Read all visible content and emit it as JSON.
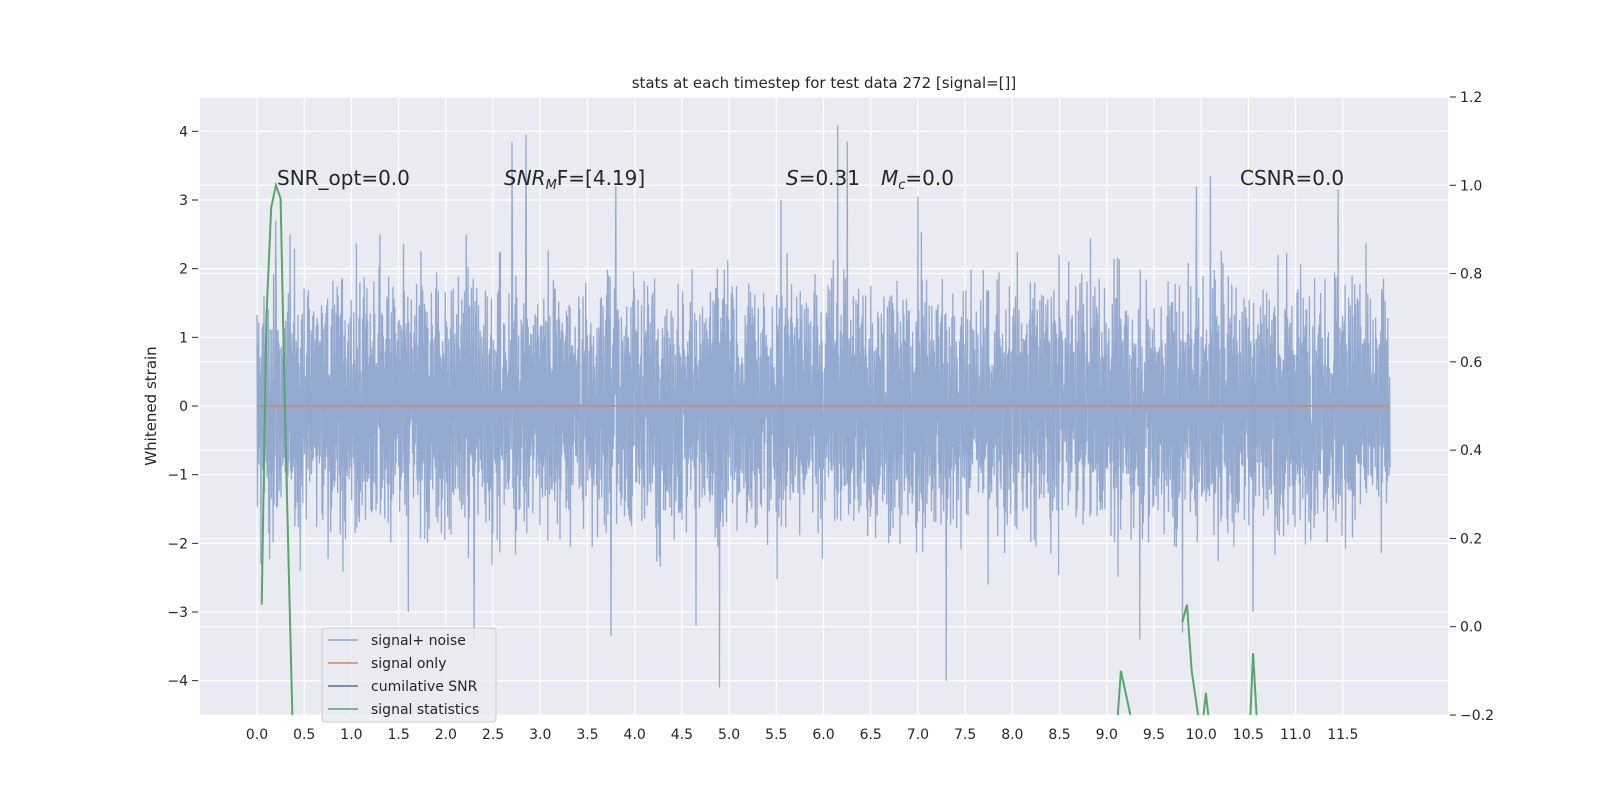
{
  "chart_data": {
    "type": "line",
    "title": "stats at each timestep for test data 272 [signal=[]]",
    "ylabel": "Whitened strain",
    "xlabel": "",
    "grid": true,
    "legend_position": "lower-left",
    "x_range": [
      0.0,
      12.0
    ],
    "x_ticks": [
      "0.0",
      "0.5",
      "1.0",
      "1.5",
      "2.0",
      "2.5",
      "3.0",
      "3.5",
      "4.0",
      "4.5",
      "5.0",
      "5.5",
      "6.0",
      "6.5",
      "7.0",
      "7.5",
      "8.0",
      "8.5",
      "9.0",
      "9.5",
      "10.0",
      "10.5",
      "11.0",
      "11.5"
    ],
    "y_left_range": [
      -4.5,
      4.5
    ],
    "y_left_ticks": [
      "−4",
      "−3",
      "−2",
      "−1",
      "0",
      "1",
      "2",
      "3",
      "4"
    ],
    "y_right_range": [
      -0.2,
      1.2
    ],
    "y_right_ticks": [
      "−0.2",
      "0.0",
      "0.2",
      "0.4",
      "0.6",
      "0.8",
      "1.0",
      "1.2"
    ],
    "annotations": [
      {
        "id": "snr-opt",
        "text": "SNR_opt=0.0"
      },
      {
        "id": "snr-mf",
        "main": "SNR",
        "sub": "M",
        "rest": "F=[4.19]"
      },
      {
        "id": "s-val",
        "main": "S",
        "rest": "=0.31"
      },
      {
        "id": "mc-val",
        "main": "M",
        "sub": "c",
        "rest": "=0.0"
      },
      {
        "id": "csnr",
        "text": "CSNR=0.0"
      }
    ],
    "series": [
      {
        "name": "signal+ noise",
        "axis": "left",
        "color": "#8ba2cc",
        "style": "dense noisy trace",
        "x_range": [
          0.0,
          12.0
        ],
        "typical_amplitude": 1.3,
        "peaks": [
          {
            "x": 0.2,
            "y": 2.7
          },
          {
            "x": 0.35,
            "y": 2.5
          },
          {
            "x": 1.3,
            "y": 2.5
          },
          {
            "x": 2.3,
            "y": 3.05
          },
          {
            "x": 2.7,
            "y": 3.85
          },
          {
            "x": 2.85,
            "y": 3.95
          },
          {
            "x": 3.8,
            "y": 3.2
          },
          {
            "x": 5.55,
            "y": 3.0
          },
          {
            "x": 6.15,
            "y": 4.08
          },
          {
            "x": 6.25,
            "y": 3.85
          },
          {
            "x": 7.0,
            "y": 3.05
          },
          {
            "x": 9.95,
            "y": 3.2
          },
          {
            "x": 10.1,
            "y": 3.35
          },
          {
            "x": 11.45,
            "y": 3.15
          }
        ],
        "troughs": [
          {
            "x": 1.6,
            "y": -3.0
          },
          {
            "x": 2.3,
            "y": -3.4
          },
          {
            "x": 3.75,
            "y": -3.35
          },
          {
            "x": 4.65,
            "y": -3.2
          },
          {
            "x": 4.9,
            "y": -4.1
          },
          {
            "x": 7.3,
            "y": -4.0
          },
          {
            "x": 9.35,
            "y": -3.4
          },
          {
            "x": 9.8,
            "y": -3.3
          },
          {
            "x": 10.55,
            "y": -3.0
          }
        ]
      },
      {
        "name": "signal only",
        "axis": "left",
        "color": "#dd8452",
        "x": [
          0.0,
          12.0
        ],
        "values": [
          0.0,
          0.0
        ]
      },
      {
        "name": "cumilative SNR",
        "axis": "right",
        "color": "#4c72b0",
        "x": [],
        "values": []
      },
      {
        "name": "signal statistics",
        "axis": "right",
        "color": "#55a868",
        "x": [
          0.05,
          0.1,
          0.15,
          0.2,
          0.25,
          0.3,
          0.38,
          9.1,
          9.15,
          9.25,
          9.8,
          9.85,
          9.9,
          10.0,
          10.05,
          10.1,
          10.15,
          10.5,
          10.55,
          10.6
        ],
        "values": [
          0.05,
          0.7,
          0.95,
          1.0,
          0.97,
          0.45,
          -0.25,
          -0.25,
          -0.1,
          -0.2,
          0.01,
          0.05,
          -0.1,
          -0.25,
          -0.15,
          -0.25,
          -0.3,
          -0.3,
          -0.06,
          -0.25
        ]
      }
    ]
  }
}
